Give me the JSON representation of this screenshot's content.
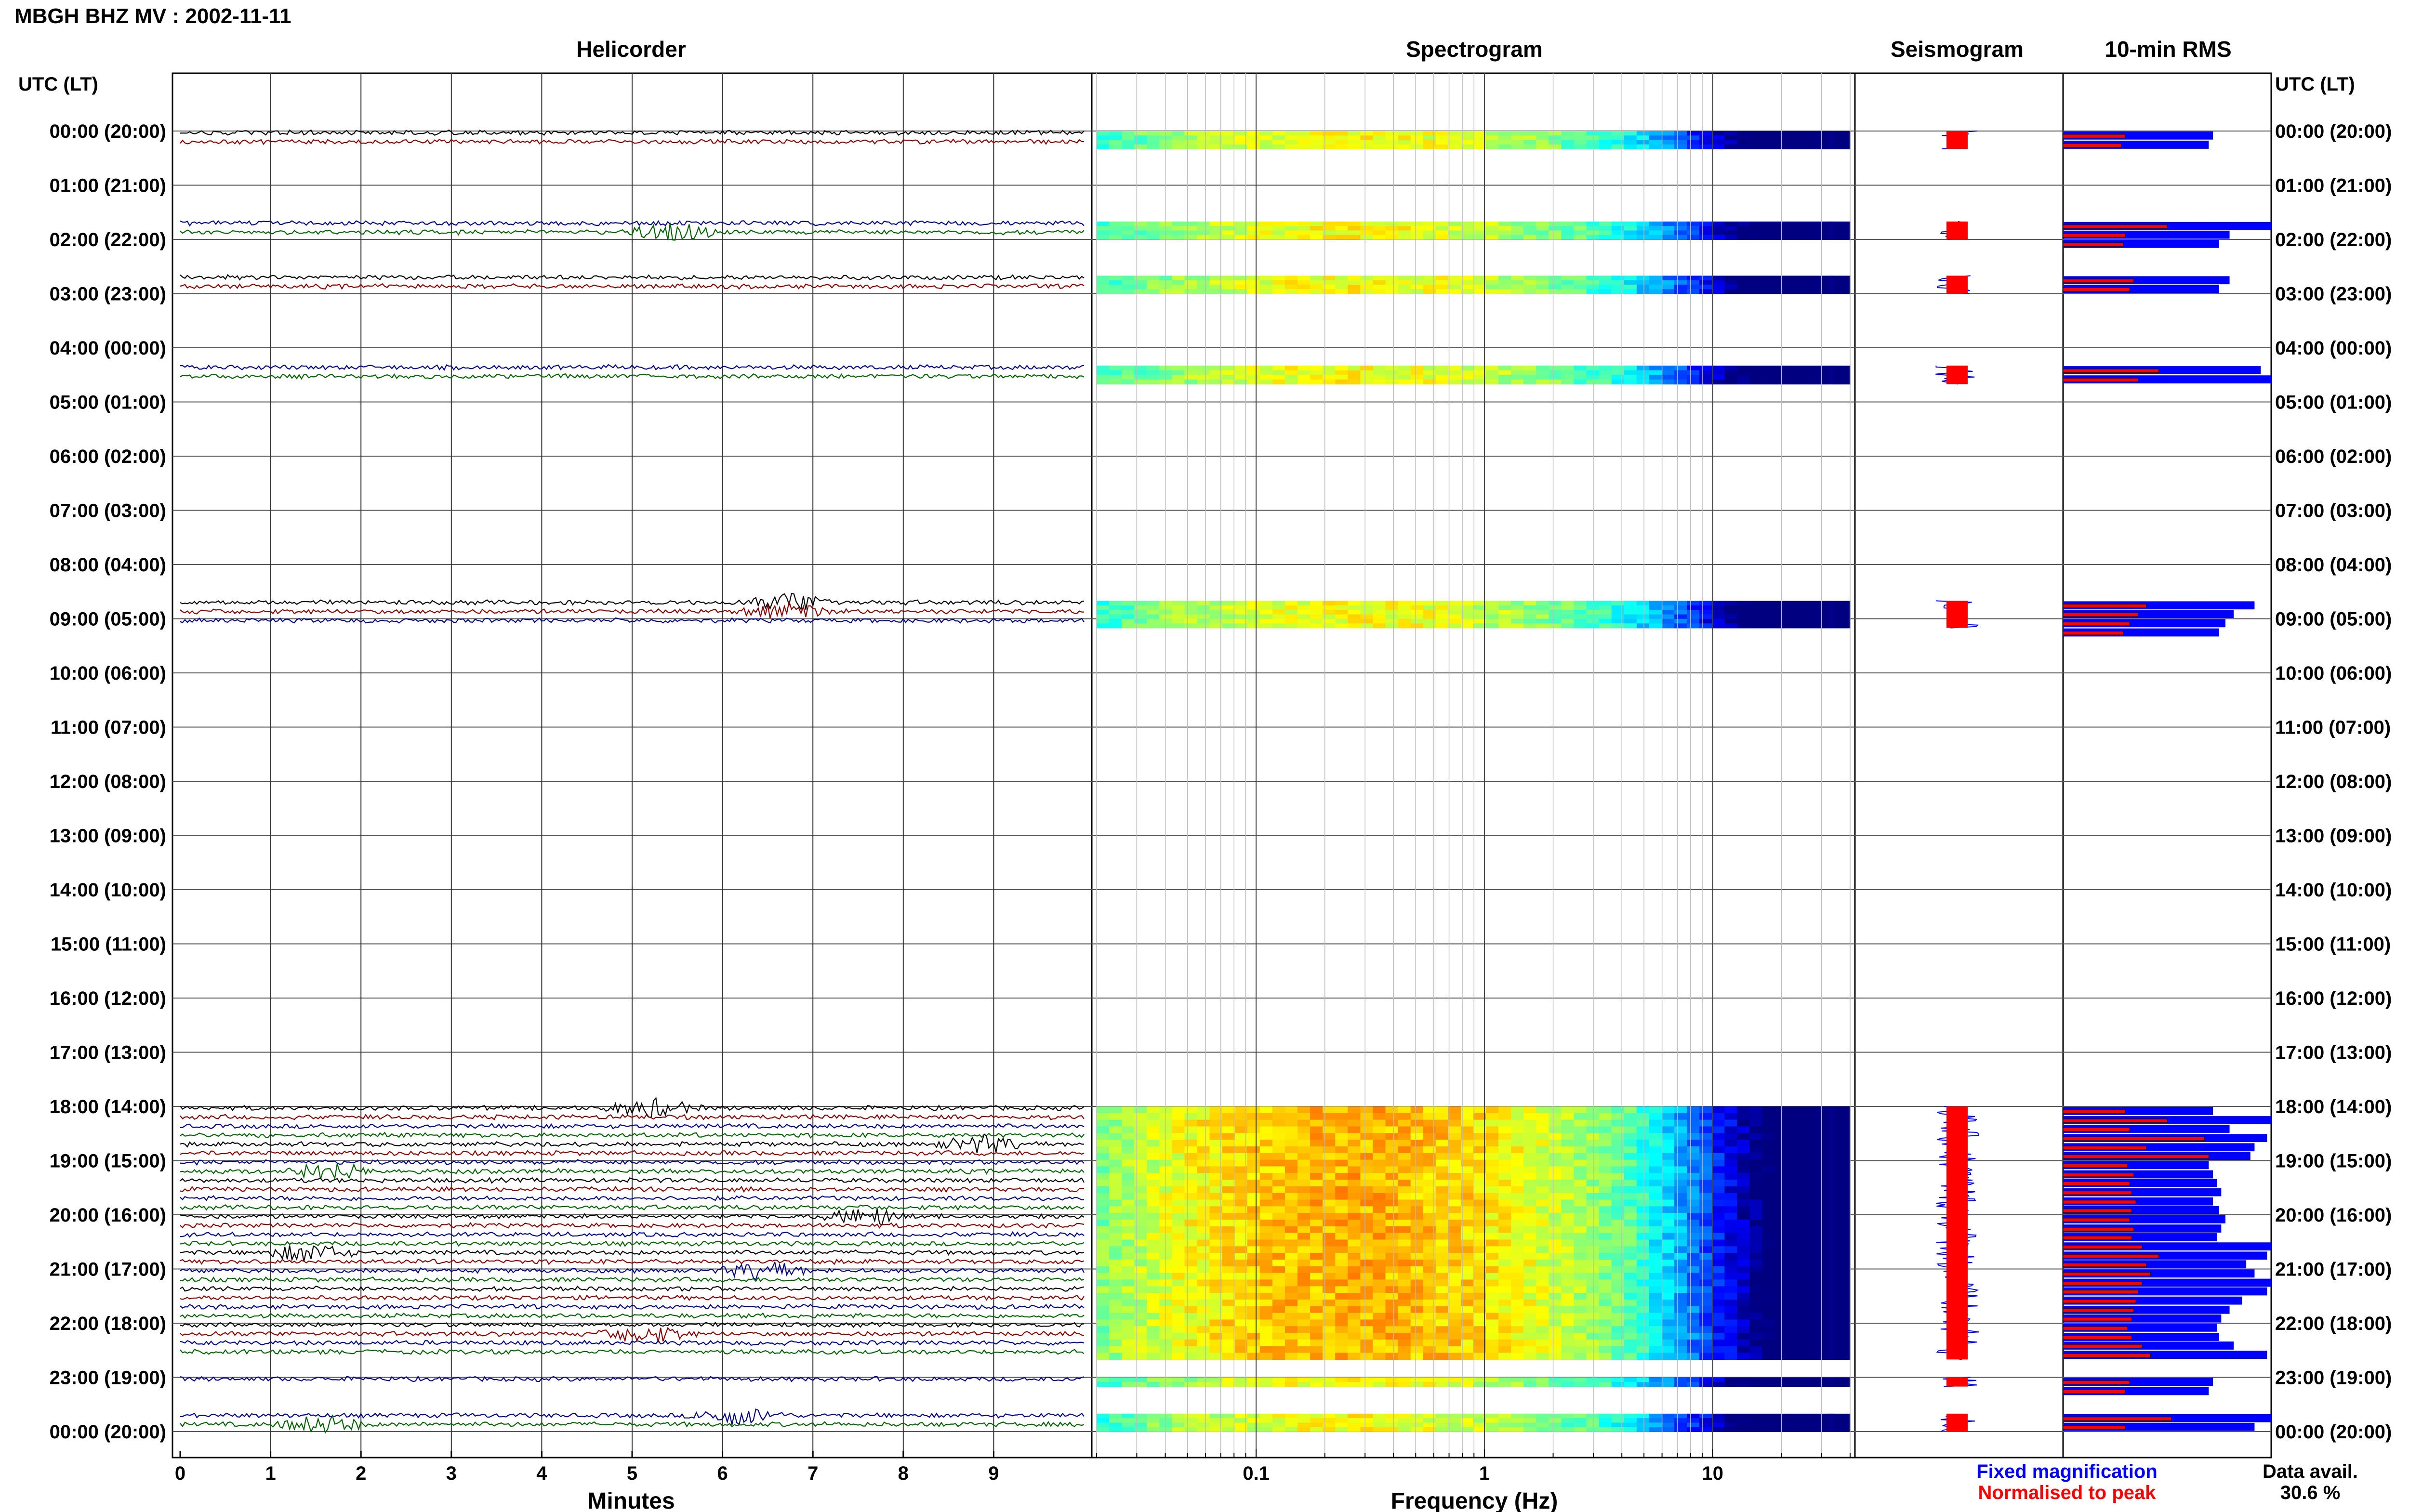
{
  "title": "MBGH BHZ MV : 2002-11-11",
  "panels": {
    "helicorder": "Helicorder",
    "spectrogram": "Spectrogram",
    "seismogram": "Seismogram",
    "rms": "10-min RMS"
  },
  "y_axis_label": "UTC (LT)",
  "x_axis": {
    "minutes_label": "Minutes",
    "minute_ticks": [
      "0",
      "1",
      "2",
      "3",
      "4",
      "5",
      "6",
      "7",
      "8",
      "9"
    ],
    "frequency_label": "Frequency (Hz)",
    "frequency_ticks": [
      "0.1",
      "1",
      "10"
    ]
  },
  "legend": {
    "fixed": "Fixed magnification",
    "normalised": "Normalised to peak",
    "avail_label": "Data avail.",
    "avail_value": "30.6 %"
  },
  "colors": {
    "fixed": "#0000ff",
    "normalised": "#ff0000",
    "trace_cycle": [
      "#000000",
      "#8b0000",
      "#00008b",
      "#006400"
    ]
  },
  "chart_data": {
    "type": "helicorder",
    "hour_labels": [
      "00:00 (20:00)",
      "01:00 (21:00)",
      "02:00 (22:00)",
      "03:00 (23:00)",
      "04:00 (00:00)",
      "05:00 (01:00)",
      "06:00 (02:00)",
      "07:00 (03:00)",
      "08:00 (04:00)",
      "09:00 (05:00)",
      "10:00 (06:00)",
      "11:00 (07:00)",
      "12:00 (08:00)",
      "13:00 (09:00)",
      "14:00 (10:00)",
      "15:00 (11:00)",
      "16:00 (12:00)",
      "17:00 (13:00)",
      "18:00 (14:00)",
      "19:00 (15:00)",
      "20:00 (16:00)",
      "21:00 (17:00)",
      "22:00 (18:00)",
      "23:00 (19:00)",
      "00:00 (20:00)"
    ],
    "minute_range": [
      0,
      10
    ],
    "frequency_range_hz": [
      0.02,
      40
    ],
    "frequency_scale": "log",
    "data_segments_hours": [
      [
        0.0,
        0.33
      ],
      [
        1.67,
        2.0
      ],
      [
        2.67,
        3.0
      ],
      [
        4.33,
        4.67
      ],
      [
        8.67,
        9.17
      ],
      [
        18.0,
        22.67
      ],
      [
        23.0,
        23.17
      ],
      [
        23.67,
        24.0
      ]
    ],
    "rms_fixed": [
      [
        0.0,
        0.72
      ],
      [
        0.17,
        0.7
      ],
      [
        1.67,
        1.0
      ],
      [
        1.83,
        0.8
      ],
      [
        2.0,
        0.75
      ],
      [
        2.67,
        0.8
      ],
      [
        2.83,
        0.75
      ],
      [
        4.33,
        0.95
      ],
      [
        4.5,
        1.0
      ],
      [
        8.67,
        0.92
      ],
      [
        8.83,
        0.82
      ],
      [
        9.0,
        0.78
      ],
      [
        9.17,
        0.75
      ],
      [
        18.0,
        0.72
      ],
      [
        18.17,
        1.0
      ],
      [
        18.33,
        0.8
      ],
      [
        18.5,
        0.98
      ],
      [
        18.67,
        0.92
      ],
      [
        18.83,
        0.9
      ],
      [
        19.0,
        0.7
      ],
      [
        19.17,
        0.72
      ],
      [
        19.33,
        0.74
      ],
      [
        19.5,
        0.76
      ],
      [
        19.67,
        0.72
      ],
      [
        19.83,
        0.75
      ],
      [
        20.0,
        0.78
      ],
      [
        20.17,
        0.76
      ],
      [
        20.33,
        0.74
      ],
      [
        20.5,
        1.0
      ],
      [
        20.67,
        0.98
      ],
      [
        20.83,
        0.88
      ],
      [
        21.0,
        0.92
      ],
      [
        21.17,
        1.0
      ],
      [
        21.33,
        0.98
      ],
      [
        21.5,
        0.86
      ],
      [
        21.67,
        0.8
      ],
      [
        21.83,
        0.76
      ],
      [
        22.0,
        0.74
      ],
      [
        22.17,
        0.75
      ],
      [
        22.33,
        0.82
      ],
      [
        22.5,
        0.98
      ],
      [
        23.0,
        0.72
      ],
      [
        23.17,
        0.7
      ],
      [
        23.67,
        1.0
      ],
      [
        23.83,
        0.92
      ]
    ],
    "rms_normalised": [
      [
        0.0,
        0.3
      ],
      [
        0.17,
        0.28
      ],
      [
        1.67,
        0.5
      ],
      [
        1.83,
        0.3
      ],
      [
        2.0,
        0.29
      ],
      [
        2.67,
        0.34
      ],
      [
        2.83,
        0.32
      ],
      [
        4.33,
        0.46
      ],
      [
        4.5,
        0.36
      ],
      [
        8.67,
        0.4
      ],
      [
        8.83,
        0.36
      ],
      [
        9.0,
        0.32
      ],
      [
        9.17,
        0.29
      ],
      [
        18.0,
        0.3
      ],
      [
        18.17,
        0.5
      ],
      [
        18.33,
        0.32
      ],
      [
        18.5,
        0.68
      ],
      [
        18.67,
        0.4
      ],
      [
        18.83,
        0.7
      ],
      [
        19.0,
        0.31
      ],
      [
        19.17,
        0.34
      ],
      [
        19.33,
        0.32
      ],
      [
        19.5,
        0.33
      ],
      [
        19.67,
        0.35
      ],
      [
        19.83,
        0.33
      ],
      [
        20.0,
        0.32
      ],
      [
        20.17,
        0.34
      ],
      [
        20.33,
        0.33
      ],
      [
        20.5,
        0.38
      ],
      [
        20.67,
        0.46
      ],
      [
        20.83,
        0.4
      ],
      [
        21.0,
        0.42
      ],
      [
        21.17,
        0.38
      ],
      [
        21.33,
        0.36
      ],
      [
        21.5,
        0.35
      ],
      [
        21.67,
        0.34
      ],
      [
        21.83,
        0.33
      ],
      [
        22.0,
        0.31
      ],
      [
        22.17,
        0.33
      ],
      [
        22.33,
        0.38
      ],
      [
        22.5,
        0.42
      ],
      [
        23.0,
        0.32
      ],
      [
        23.17,
        0.3
      ],
      [
        23.67,
        0.52
      ],
      [
        23.83,
        0.3
      ]
    ]
  }
}
